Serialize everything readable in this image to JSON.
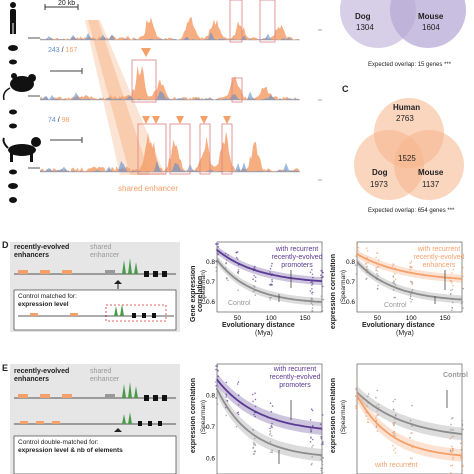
{
  "panel_a": {
    "scale_bar": "20 kb",
    "mouse_counts": {
      "blue": "243",
      "sep": "/",
      "orange": "167"
    },
    "dog_counts": {
      "blue": "74",
      "sep": "/",
      "orange": "98"
    },
    "shared_enhancer": "shared enhancer"
  },
  "panel_b": {
    "dog_label": "Dog",
    "dog_value": "1304",
    "mouse_label": "Mouse",
    "mouse_value": "1604",
    "overlap": "Expected overlap: 15 genes ***"
  },
  "panel_c": {
    "letter": "C",
    "human_label": "Human",
    "human_value": "2763",
    "center_value": "1525",
    "dog_label": "Dog",
    "dog_value": "1973",
    "mouse_label": "Mouse",
    "mouse_value": "1137",
    "overlap": "Expected overlap: 654 genes ***"
  },
  "panel_d": {
    "letter": "D",
    "recent": "recently-evolved enhancers",
    "shared": "shared enhancer",
    "control_a": "Control matched for:",
    "control_b": "expression level",
    "plot1": {
      "ylabel_a": "Gene expression correlation",
      "ylabel_b": "(Spearman)",
      "xlabel": "Evolutionary distance",
      "xunit": "(Mya)",
      "annotation": "with recurrent recently-evolved promoters",
      "control": "Control",
      "yticks": [
        "0.8",
        "0.7",
        "0.6"
      ],
      "xticks": [
        "50",
        "100",
        "150"
      ]
    },
    "plot2": {
      "ylabel_a": "expression correlation",
      "ylabel_b": "(Spearman)",
      "xlabel": "Evolutionary distance",
      "xunit": "(Mya)",
      "annotation": "with recurrent recently-evolved enhancers",
      "control": "Control",
      "yticks": [
        "0.8",
        "0.7",
        "0.6"
      ],
      "xticks": [
        "50",
        "100",
        "150"
      ]
    }
  },
  "panel_e": {
    "letter": "E",
    "recent": "recently-evolved enhancers",
    "shared": "shared enhancer",
    "control_a": "Control double-matched for:",
    "control_b": "expression level & nb of elements",
    "plot1": {
      "ylabel_a": "expression correlation",
      "ylabel_b": "(Spearman)",
      "annotation": "with recurrent recently-evolved promoters",
      "yticks": [
        "0.8",
        "0.7",
        "0.6"
      ]
    },
    "plot2": {
      "ylabel_a": "expression correlation",
      "ylabel_b": "(Spearman)",
      "annotation": "with recurrent",
      "control": "Control"
    }
  },
  "colors": {
    "orange": "#f4a06b",
    "blue": "#5b8fd1",
    "purple": "#5b3a93",
    "gray": "#8c8c8c",
    "red": "#d9534f"
  }
}
